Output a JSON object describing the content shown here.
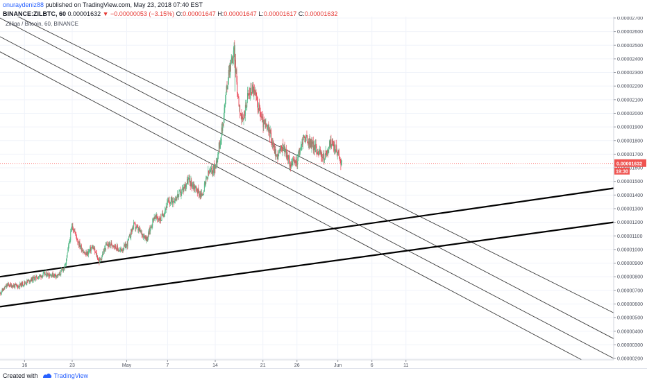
{
  "header": {
    "author": "onuraydeniz88",
    "published": "published on TradingView.com, May 23, 2018 07:40 EST",
    "symbol": "BINANCE:ZILBTC, 60",
    "last": "0.00001632",
    "change_arrow": "▼",
    "change": "−0.00000053 (−3.15%)",
    "open_label": "O:",
    "open": "0.00001647",
    "high_label": "H:",
    "high": "0.00001647",
    "low_label": "L:",
    "low": "0.00001617",
    "close_label": "C:",
    "close": "0.00001632"
  },
  "footer": {
    "created_with": "Created with",
    "brand": "TradingView",
    "logo_icon": "tradingview-logo-icon"
  },
  "colors": {
    "candle_up": "#53b987",
    "candle_down": "#eb4d5c",
    "channel_line": "#3a3a3a",
    "support_line": "#000000",
    "price_line": "#ff5252",
    "grid": "#f0f3fa",
    "price_badge": "#ef5350",
    "time_badge": "#ef5350"
  },
  "chart_data": {
    "type": "candlestick",
    "legend": "Zilliqa / Bitcoin, 60, BINANCE",
    "y_range": [
      1.9e-06,
      2.71e-05
    ],
    "y_ticks": [
      "0.00002700",
      "0.00002600",
      "0.00002500",
      "0.00002400",
      "0.00002300",
      "0.00002200",
      "0.00002100",
      "0.00002000",
      "0.00001900",
      "0.00001800",
      "0.00001700",
      "0.00001600",
      "0.00001500",
      "0.00001400",
      "0.00001300",
      "0.00001200",
      "0.00001100",
      "0.00001000",
      "0.00000900",
      "0.00000800",
      "0.00000700",
      "0.00000600",
      "0.00000500",
      "0.00000400",
      "0.00000300",
      "0.00000200"
    ],
    "x_ticks": [
      {
        "label": "16",
        "day": 16
      },
      {
        "label": "23",
        "day": 23
      },
      {
        "label": "May",
        "day": 31
      },
      {
        "label": "7",
        "day": 37
      },
      {
        "label": "14",
        "day": 44
      },
      {
        "label": "21",
        "day": 51
      },
      {
        "label": "26",
        "day": 56
      },
      {
        "label": "Jun",
        "day": 62
      },
      {
        "label": "6",
        "day": 67
      },
      {
        "label": "11",
        "day": 72
      }
    ],
    "x_range_days": [
      12.4,
      102.5
    ],
    "x_unit": "days from Apr 1, 2018",
    "current_price": 1.632e-05,
    "current_price_label": "0.00001632",
    "countdown_label": "19:30",
    "price_anchors": [
      [
        12.4,
        6.8e-06
      ],
      [
        13.5,
        7.4e-06
      ],
      [
        15,
        7.3e-06
      ],
      [
        17,
        7.8e-06
      ],
      [
        19,
        8.2e-06
      ],
      [
        21,
        8.1e-06
      ],
      [
        22,
        8.8e-06
      ],
      [
        23,
        1.18e-05
      ],
      [
        24,
        1.04e-05
      ],
      [
        25,
        9.6e-06
      ],
      [
        26,
        1.02e-05
      ],
      [
        27,
        9.1e-06
      ],
      [
        28,
        1.03e-05
      ],
      [
        29,
        1.04e-05
      ],
      [
        30,
        9.9e-06
      ],
      [
        31,
        1.03e-05
      ],
      [
        32,
        1.18e-05
      ],
      [
        33,
        1.13e-05
      ],
      [
        34,
        1.08e-05
      ],
      [
        35,
        1.24e-05
      ],
      [
        36,
        1.22e-05
      ],
      [
        37,
        1.34e-05
      ],
      [
        38,
        1.37e-05
      ],
      [
        39,
        1.42e-05
      ],
      [
        40,
        1.51e-05
      ],
      [
        41,
        1.46e-05
      ],
      [
        42,
        1.39e-05
      ],
      [
        43,
        1.56e-05
      ],
      [
        44,
        1.6e-05
      ],
      [
        45,
        1.88e-05
      ],
      [
        46,
        2.32e-05
      ],
      [
        46.8,
        2.45e-05
      ],
      [
        47.3,
        2.14e-05
      ],
      [
        48,
        1.92e-05
      ],
      [
        48.7,
        2.12e-05
      ],
      [
        49.5,
        2.19e-05
      ],
      [
        50.3,
        2.06e-05
      ],
      [
        51,
        1.93e-05
      ],
      [
        52,
        1.86e-05
      ],
      [
        53,
        1.68e-05
      ],
      [
        54,
        1.76e-05
      ],
      [
        55,
        1.63e-05
      ],
      [
        56,
        1.65e-05
      ],
      [
        57,
        1.83e-05
      ],
      [
        58,
        1.78e-05
      ],
      [
        59,
        1.73e-05
      ],
      [
        60,
        1.67e-05
      ],
      [
        61,
        1.79e-05
      ],
      [
        62,
        1.71e-05
      ],
      [
        62.6,
        1.63e-05
      ]
    ],
    "spikes": [
      {
        "day": 46.9,
        "high": 2.5e-05,
        "low": 2.16e-05
      }
    ],
    "trend_lines": [
      {
        "role": "channel",
        "from": [
          12.4,
          2.776e-05
        ],
        "to": [
          102.5,
          5.35e-06
        ]
      },
      {
        "role": "channel",
        "from": [
          12.4,
          2.7e-05
        ],
        "to": [
          102.5,
          3.45e-06
        ]
      },
      {
        "role": "channel",
        "from": [
          12.4,
          2.563e-05
        ],
        "to": [
          102.5,
          2e-06
        ]
      },
      {
        "role": "channel",
        "from": [
          12.4,
          2.452e-05
        ],
        "to": [
          97.8,
          1.9e-06
        ]
      },
      {
        "role": "support",
        "from": [
          12.4,
          8e-06
        ],
        "to": [
          102.5,
          1.45e-05
        ]
      },
      {
        "role": "support",
        "from": [
          12.4,
          5.8e-06
        ],
        "to": [
          102.5,
          1.2e-05
        ]
      }
    ]
  }
}
